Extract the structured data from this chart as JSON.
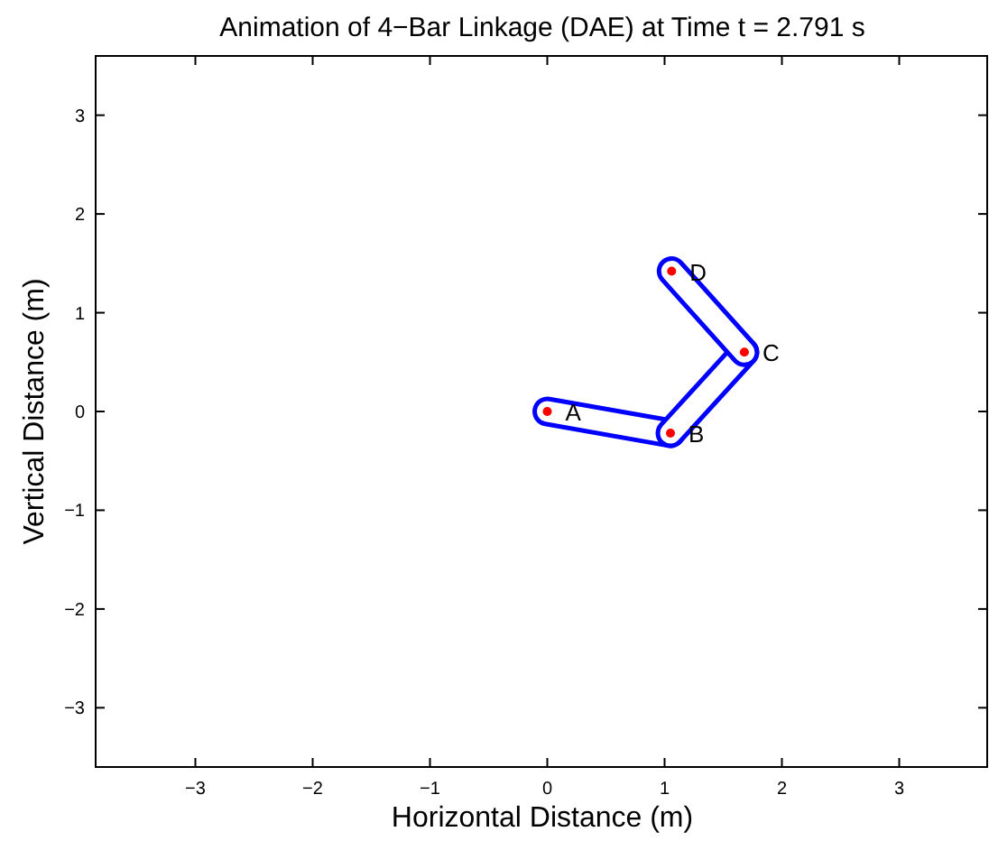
{
  "chart_data": {
    "type": "line",
    "title": "Animation of 4−Bar Linkage (DAE) at Time t = 2.791 s",
    "xlabel": "Horizontal Distance (m)",
    "ylabel": "Vertical Distance (m)",
    "xlim": [
      -3.85,
      3.75
    ],
    "xticks": [
      {
        "value": -3,
        "label": "−3"
      },
      {
        "value": -2,
        "label": "−2"
      },
      {
        "value": -1,
        "label": "−1"
      },
      0,
      1,
      2,
      3
    ],
    "ylim": [
      -3.6,
      3.6
    ],
    "yticks": [
      {
        "value": -3,
        "label": "−3"
      },
      {
        "value": -2,
        "label": "−2"
      },
      {
        "value": -1,
        "label": "−1"
      },
      0,
      1,
      2,
      3
    ],
    "grid": false,
    "line_style": "solid",
    "series": [
      {
        "color": "#0000ff",
        "x": [
          0,
          1.05
        ],
        "values": [
          0,
          -0.22
        ]
      },
      {
        "color": "#0000ff",
        "x": [
          1.05,
          1.68
        ],
        "values": [
          -0.22,
          0.6
        ]
      },
      {
        "color": "#0000ff",
        "x": [
          1.68,
          1.06
        ],
        "values": [
          0.6,
          1.42
        ]
      },
      {
        "type": "scatter",
        "color": "#ff0000",
        "marker": "circle",
        "x": [
          0,
          1.05,
          1.68,
          1.06
        ],
        "values": [
          0,
          -0.22,
          0.6,
          1.42
        ]
      }
    ],
    "annotations": [
      {
        "text": "A",
        "x": 0,
        "y": 0
      },
      {
        "text": "B",
        "x": 1.05,
        "y": -0.22
      },
      {
        "text": "C",
        "x": 1.68,
        "y": 0.6
      },
      {
        "text": "D",
        "x": 1.06,
        "y": 1.42
      }
    ]
  }
}
